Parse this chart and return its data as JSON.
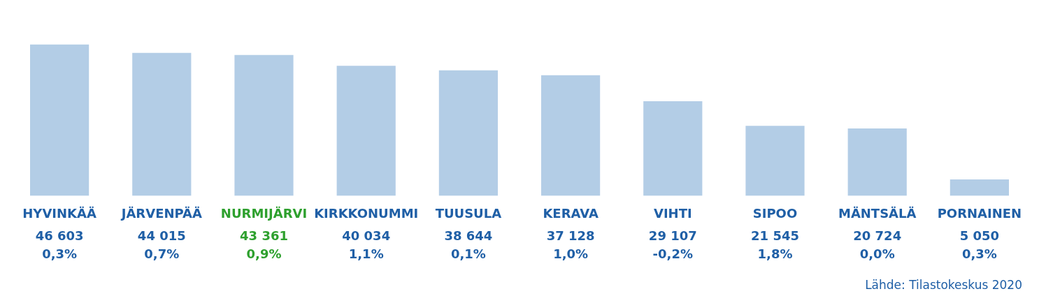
{
  "chart_data": {
    "type": "bar",
    "categories": [
      "HYVINKÄÄ",
      "JÄRVENPÄÄ",
      "NURMIJÄRVI",
      "KIRKKONUMMI",
      "TUUSULA",
      "KERAVA",
      "VIHTI",
      "SIPOO",
      "MÄNTSÄLÄ",
      "PORNAINEN"
    ],
    "values": [
      46603,
      44015,
      43361,
      40034,
      38644,
      37128,
      29107,
      21545,
      20724,
      5050
    ],
    "value_labels": [
      "46 603",
      "44 015",
      "43 361",
      "40 034",
      "38 644",
      "37 128",
      "29 107",
      "21 545",
      "20 724",
      "5 050"
    ],
    "color": "#b3cde6",
    "tick_labels": "x",
    "annotations": [
      "0,3%",
      "0,7%",
      "0,9%",
      "1,1%",
      "0,1%",
      "1,0%",
      "-0,2%",
      "1,8%",
      "0,0%",
      "0,3%",
      "Lähde: Tilastokeskus 2020"
    ]
  }
}
